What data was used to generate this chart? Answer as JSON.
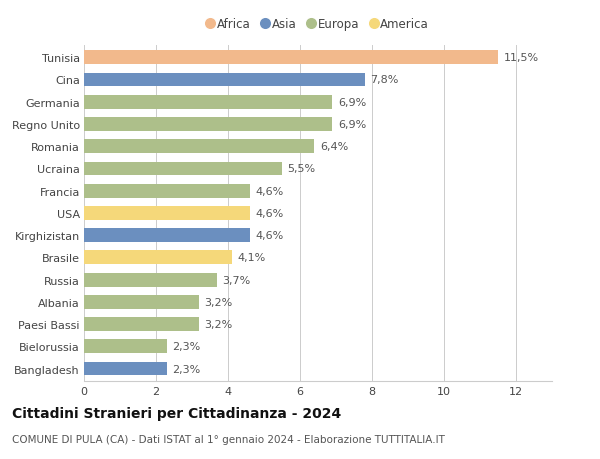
{
  "categories": [
    "Tunisia",
    "Cina",
    "Germania",
    "Regno Unito",
    "Romania",
    "Ucraina",
    "Francia",
    "USA",
    "Kirghizistan",
    "Brasile",
    "Russia",
    "Albania",
    "Paesi Bassi",
    "Bielorussia",
    "Bangladesh"
  ],
  "values": [
    11.5,
    7.8,
    6.9,
    6.9,
    6.4,
    5.5,
    4.6,
    4.6,
    4.6,
    4.1,
    3.7,
    3.2,
    3.2,
    2.3,
    2.3
  ],
  "labels": [
    "11,5%",
    "7,8%",
    "6,9%",
    "6,9%",
    "6,4%",
    "5,5%",
    "4,6%",
    "4,6%",
    "4,6%",
    "4,1%",
    "3,7%",
    "3,2%",
    "3,2%",
    "2,3%",
    "2,3%"
  ],
  "continents": [
    "Africa",
    "Asia",
    "Europa",
    "Europa",
    "Europa",
    "Europa",
    "Europa",
    "America",
    "Asia",
    "America",
    "Europa",
    "Europa",
    "Europa",
    "Europa",
    "Asia"
  ],
  "colors": {
    "Africa": "#F2B98C",
    "Asia": "#6B8FBF",
    "Europa": "#ADBF8A",
    "America": "#F5D87A"
  },
  "legend_order": [
    "Africa",
    "Asia",
    "Europa",
    "America"
  ],
  "title": "Cittadini Stranieri per Cittadinanza - 2024",
  "subtitle": "COMUNE DI PULA (CA) - Dati ISTAT al 1° gennaio 2024 - Elaborazione TUTTITALIA.IT",
  "xlim": [
    0,
    13.0
  ],
  "xticks": [
    0,
    2,
    4,
    6,
    8,
    10,
    12
  ],
  "background_color": "#ffffff",
  "bar_height": 0.62,
  "grid_color": "#cccccc",
  "title_fontsize": 10,
  "subtitle_fontsize": 7.5,
  "tick_fontsize": 8,
  "label_fontsize": 8,
  "legend_fontsize": 8.5
}
